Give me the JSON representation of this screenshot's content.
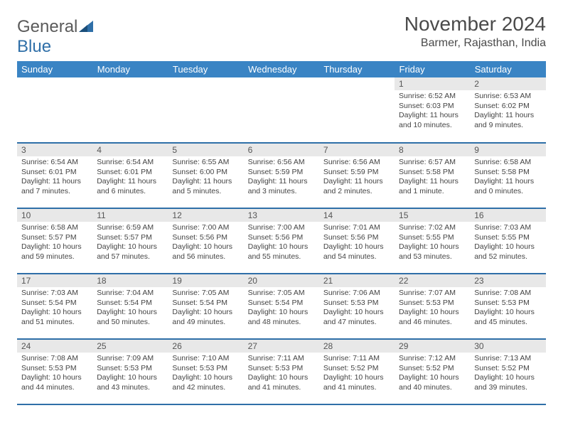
{
  "brand": {
    "part1": "General",
    "part2": "Blue"
  },
  "title": "November 2024",
  "location": "Barmer, Rajasthan, India",
  "colors": {
    "header_bg": "#3a84c4",
    "border": "#2f6fa8",
    "daynum_bg": "#e8e8e8",
    "text": "#3a3a3a",
    "brand_blue": "#2f6fa8"
  },
  "dayNames": [
    "Sunday",
    "Monday",
    "Tuesday",
    "Wednesday",
    "Thursday",
    "Friday",
    "Saturday"
  ],
  "weeks": [
    [
      null,
      null,
      null,
      null,
      null,
      {
        "n": "1",
        "sr": "Sunrise: 6:52 AM",
        "ss": "Sunset: 6:03 PM",
        "dl": "Daylight: 11 hours and 10 minutes."
      },
      {
        "n": "2",
        "sr": "Sunrise: 6:53 AM",
        "ss": "Sunset: 6:02 PM",
        "dl": "Daylight: 11 hours and 9 minutes."
      }
    ],
    [
      {
        "n": "3",
        "sr": "Sunrise: 6:54 AM",
        "ss": "Sunset: 6:01 PM",
        "dl": "Daylight: 11 hours and 7 minutes."
      },
      {
        "n": "4",
        "sr": "Sunrise: 6:54 AM",
        "ss": "Sunset: 6:01 PM",
        "dl": "Daylight: 11 hours and 6 minutes."
      },
      {
        "n": "5",
        "sr": "Sunrise: 6:55 AM",
        "ss": "Sunset: 6:00 PM",
        "dl": "Daylight: 11 hours and 5 minutes."
      },
      {
        "n": "6",
        "sr": "Sunrise: 6:56 AM",
        "ss": "Sunset: 5:59 PM",
        "dl": "Daylight: 11 hours and 3 minutes."
      },
      {
        "n": "7",
        "sr": "Sunrise: 6:56 AM",
        "ss": "Sunset: 5:59 PM",
        "dl": "Daylight: 11 hours and 2 minutes."
      },
      {
        "n": "8",
        "sr": "Sunrise: 6:57 AM",
        "ss": "Sunset: 5:58 PM",
        "dl": "Daylight: 11 hours and 1 minute."
      },
      {
        "n": "9",
        "sr": "Sunrise: 6:58 AM",
        "ss": "Sunset: 5:58 PM",
        "dl": "Daylight: 11 hours and 0 minutes."
      }
    ],
    [
      {
        "n": "10",
        "sr": "Sunrise: 6:58 AM",
        "ss": "Sunset: 5:57 PM",
        "dl": "Daylight: 10 hours and 59 minutes."
      },
      {
        "n": "11",
        "sr": "Sunrise: 6:59 AM",
        "ss": "Sunset: 5:57 PM",
        "dl": "Daylight: 10 hours and 57 minutes."
      },
      {
        "n": "12",
        "sr": "Sunrise: 7:00 AM",
        "ss": "Sunset: 5:56 PM",
        "dl": "Daylight: 10 hours and 56 minutes."
      },
      {
        "n": "13",
        "sr": "Sunrise: 7:00 AM",
        "ss": "Sunset: 5:56 PM",
        "dl": "Daylight: 10 hours and 55 minutes."
      },
      {
        "n": "14",
        "sr": "Sunrise: 7:01 AM",
        "ss": "Sunset: 5:56 PM",
        "dl": "Daylight: 10 hours and 54 minutes."
      },
      {
        "n": "15",
        "sr": "Sunrise: 7:02 AM",
        "ss": "Sunset: 5:55 PM",
        "dl": "Daylight: 10 hours and 53 minutes."
      },
      {
        "n": "16",
        "sr": "Sunrise: 7:03 AM",
        "ss": "Sunset: 5:55 PM",
        "dl": "Daylight: 10 hours and 52 minutes."
      }
    ],
    [
      {
        "n": "17",
        "sr": "Sunrise: 7:03 AM",
        "ss": "Sunset: 5:54 PM",
        "dl": "Daylight: 10 hours and 51 minutes."
      },
      {
        "n": "18",
        "sr": "Sunrise: 7:04 AM",
        "ss": "Sunset: 5:54 PM",
        "dl": "Daylight: 10 hours and 50 minutes."
      },
      {
        "n": "19",
        "sr": "Sunrise: 7:05 AM",
        "ss": "Sunset: 5:54 PM",
        "dl": "Daylight: 10 hours and 49 minutes."
      },
      {
        "n": "20",
        "sr": "Sunrise: 7:05 AM",
        "ss": "Sunset: 5:54 PM",
        "dl": "Daylight: 10 hours and 48 minutes."
      },
      {
        "n": "21",
        "sr": "Sunrise: 7:06 AM",
        "ss": "Sunset: 5:53 PM",
        "dl": "Daylight: 10 hours and 47 minutes."
      },
      {
        "n": "22",
        "sr": "Sunrise: 7:07 AM",
        "ss": "Sunset: 5:53 PM",
        "dl": "Daylight: 10 hours and 46 minutes."
      },
      {
        "n": "23",
        "sr": "Sunrise: 7:08 AM",
        "ss": "Sunset: 5:53 PM",
        "dl": "Daylight: 10 hours and 45 minutes."
      }
    ],
    [
      {
        "n": "24",
        "sr": "Sunrise: 7:08 AM",
        "ss": "Sunset: 5:53 PM",
        "dl": "Daylight: 10 hours and 44 minutes."
      },
      {
        "n": "25",
        "sr": "Sunrise: 7:09 AM",
        "ss": "Sunset: 5:53 PM",
        "dl": "Daylight: 10 hours and 43 minutes."
      },
      {
        "n": "26",
        "sr": "Sunrise: 7:10 AM",
        "ss": "Sunset: 5:53 PM",
        "dl": "Daylight: 10 hours and 42 minutes."
      },
      {
        "n": "27",
        "sr": "Sunrise: 7:11 AM",
        "ss": "Sunset: 5:53 PM",
        "dl": "Daylight: 10 hours and 41 minutes."
      },
      {
        "n": "28",
        "sr": "Sunrise: 7:11 AM",
        "ss": "Sunset: 5:52 PM",
        "dl": "Daylight: 10 hours and 41 minutes."
      },
      {
        "n": "29",
        "sr": "Sunrise: 7:12 AM",
        "ss": "Sunset: 5:52 PM",
        "dl": "Daylight: 10 hours and 40 minutes."
      },
      {
        "n": "30",
        "sr": "Sunrise: 7:13 AM",
        "ss": "Sunset: 5:52 PM",
        "dl": "Daylight: 10 hours and 39 minutes."
      }
    ]
  ]
}
